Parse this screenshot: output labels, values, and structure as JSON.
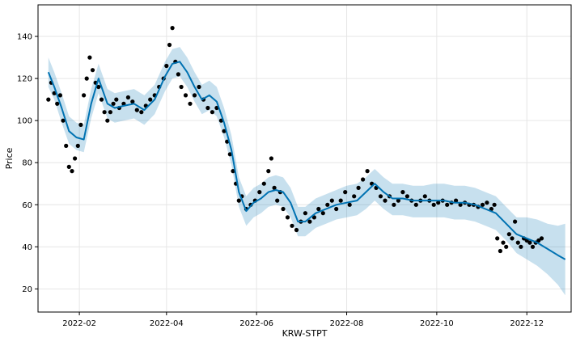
{
  "chart_data": {
    "type": "line",
    "title": "",
    "xlabel": "KRW-STPT",
    "ylabel": "Price",
    "xlim": [
      "2022-01-04",
      "2022-12-31"
    ],
    "ylim": [
      9,
      155
    ],
    "xticks": [
      "2022-02",
      "2022-04",
      "2022-06",
      "2022-08",
      "2022-10",
      "2022-12"
    ],
    "yticks": [
      20,
      40,
      60,
      80,
      100,
      120,
      140
    ],
    "grid": true,
    "colors": {
      "forecast": "#0072B2",
      "interval": "#0072B2",
      "actual": "#000000"
    },
    "forecast": {
      "name": "yhat",
      "x": [
        "2022-01-11",
        "2022-01-15",
        "2022-01-20",
        "2022-01-25",
        "2022-01-30",
        "2022-02-04",
        "2022-02-09",
        "2022-02-14",
        "2022-02-20",
        "2022-02-25",
        "2022-03-03",
        "2022-03-10",
        "2022-03-17",
        "2022-03-24",
        "2022-03-31",
        "2022-04-05",
        "2022-04-10",
        "2022-04-15",
        "2022-04-20",
        "2022-04-25",
        "2022-04-30",
        "2022-05-05",
        "2022-05-10",
        "2022-05-15",
        "2022-05-20",
        "2022-05-25",
        "2022-05-30",
        "2022-06-04",
        "2022-06-09",
        "2022-06-14",
        "2022-06-19",
        "2022-06-24",
        "2022-06-29",
        "2022-07-04",
        "2022-07-11",
        "2022-07-18",
        "2022-07-25",
        "2022-08-01",
        "2022-08-08",
        "2022-08-14",
        "2022-08-20",
        "2022-08-26",
        "2022-09-01",
        "2022-09-08",
        "2022-09-15",
        "2022-09-22",
        "2022-09-29",
        "2022-10-06",
        "2022-10-13",
        "2022-10-20",
        "2022-10-27",
        "2022-11-03",
        "2022-11-10",
        "2022-11-17",
        "2022-11-24",
        "2022-12-01",
        "2022-12-08",
        "2022-12-15",
        "2022-12-22",
        "2022-12-27"
      ],
      "yhat": [
        123,
        116,
        106,
        95,
        92,
        91,
        108,
        120,
        108,
        106,
        107,
        108,
        105,
        110,
        121,
        127,
        128,
        123,
        116,
        110,
        112,
        109,
        99,
        86,
        66,
        57,
        61,
        63,
        66,
        67,
        66,
        61,
        52,
        52,
        56,
        58,
        60,
        61,
        62,
        66,
        70,
        66,
        63,
        63,
        62,
        62,
        62,
        62,
        61,
        61,
        60,
        58,
        56,
        51,
        46,
        44,
        42,
        39,
        36,
        34
      ],
      "lower": [
        116,
        110,
        99,
        89,
        86,
        85,
        101,
        113,
        101,
        99,
        100,
        101,
        98,
        103,
        114,
        120,
        121,
        116,
        109,
        103,
        105,
        102,
        92,
        79,
        59,
        50,
        54,
        56,
        59,
        60,
        59,
        54,
        45,
        45,
        49,
        51,
        53,
        54,
        55,
        58,
        62,
        58,
        55,
        55,
        54,
        54,
        54,
        54,
        53,
        53,
        52,
        50,
        48,
        43,
        37,
        34,
        31,
        27,
        22,
        17
      ],
      "upper": [
        130,
        123,
        113,
        102,
        99,
        98,
        115,
        127,
        115,
        113,
        114,
        115,
        112,
        117,
        128,
        134,
        135,
        130,
        123,
        117,
        119,
        116,
        106,
        93,
        73,
        64,
        68,
        70,
        73,
        74,
        73,
        68,
        59,
        59,
        63,
        65,
        67,
        69,
        70,
        73,
        77,
        73,
        70,
        70,
        69,
        69,
        70,
        70,
        69,
        69,
        68,
        66,
        64,
        59,
        54,
        54,
        53,
        51,
        50,
        51
      ]
    },
    "actual": {
      "name": "y",
      "x": [
        "2022-01-11",
        "2022-01-13",
        "2022-01-15",
        "2022-01-17",
        "2022-01-19",
        "2022-01-21",
        "2022-01-23",
        "2022-01-25",
        "2022-01-27",
        "2022-01-29",
        "2022-01-31",
        "2022-02-02",
        "2022-02-04",
        "2022-02-06",
        "2022-02-08",
        "2022-02-10",
        "2022-02-12",
        "2022-02-14",
        "2022-02-16",
        "2022-02-18",
        "2022-02-20",
        "2022-02-22",
        "2022-02-24",
        "2022-02-26",
        "2022-02-28",
        "2022-03-03",
        "2022-03-06",
        "2022-03-09",
        "2022-03-12",
        "2022-03-15",
        "2022-03-18",
        "2022-03-21",
        "2022-03-24",
        "2022-03-27",
        "2022-03-30",
        "2022-04-01",
        "2022-04-03",
        "2022-04-05",
        "2022-04-07",
        "2022-04-09",
        "2022-04-11",
        "2022-04-14",
        "2022-04-17",
        "2022-04-20",
        "2022-04-23",
        "2022-04-26",
        "2022-04-29",
        "2022-05-02",
        "2022-05-05",
        "2022-05-08",
        "2022-05-10",
        "2022-05-12",
        "2022-05-14",
        "2022-05-16",
        "2022-05-18",
        "2022-05-20",
        "2022-05-22",
        "2022-05-25",
        "2022-05-28",
        "2022-05-31",
        "2022-06-03",
        "2022-06-06",
        "2022-06-09",
        "2022-06-11",
        "2022-06-13",
        "2022-06-15",
        "2022-06-17",
        "2022-06-19",
        "2022-06-22",
        "2022-06-25",
        "2022-06-28",
        "2022-07-01",
        "2022-07-04",
        "2022-07-07",
        "2022-07-10",
        "2022-07-13",
        "2022-07-16",
        "2022-07-19",
        "2022-07-22",
        "2022-07-25",
        "2022-07-28",
        "2022-07-31",
        "2022-08-03",
        "2022-08-06",
        "2022-08-09",
        "2022-08-12",
        "2022-08-15",
        "2022-08-18",
        "2022-08-21",
        "2022-08-24",
        "2022-08-27",
        "2022-08-30",
        "2022-09-02",
        "2022-09-05",
        "2022-09-08",
        "2022-09-11",
        "2022-09-14",
        "2022-09-17",
        "2022-09-20",
        "2022-09-23",
        "2022-09-26",
        "2022-09-29",
        "2022-10-02",
        "2022-10-05",
        "2022-10-08",
        "2022-10-11",
        "2022-10-14",
        "2022-10-17",
        "2022-10-20",
        "2022-10-23",
        "2022-10-26",
        "2022-10-29",
        "2022-11-01",
        "2022-11-04",
        "2022-11-07",
        "2022-11-09",
        "2022-11-11",
        "2022-11-13",
        "2022-11-15",
        "2022-11-17",
        "2022-11-19",
        "2022-11-21",
        "2022-11-23",
        "2022-11-25",
        "2022-11-27",
        "2022-11-29",
        "2022-12-01",
        "2022-12-03",
        "2022-12-05",
        "2022-12-07",
        "2022-12-09",
        "2022-12-11"
      ],
      "y": [
        110,
        118,
        113,
        108,
        112,
        100,
        88,
        78,
        76,
        82,
        88,
        98,
        112,
        120,
        130,
        124,
        118,
        116,
        110,
        104,
        100,
        104,
        108,
        110,
        106,
        108,
        111,
        109,
        105,
        104,
        107,
        110,
        112,
        116,
        120,
        126,
        136,
        144,
        128,
        122,
        116,
        112,
        108,
        112,
        116,
        110,
        106,
        104,
        106,
        100,
        95,
        90,
        84,
        76,
        70,
        62,
        64,
        58,
        60,
        62,
        66,
        70,
        76,
        82,
        68,
        62,
        66,
        58,
        54,
        50,
        48,
        52,
        56,
        52,
        54,
        58,
        56,
        60,
        62,
        58,
        62,
        66,
        60,
        64,
        68,
        72,
        76,
        70,
        68,
        64,
        62,
        64,
        60,
        62,
        66,
        64,
        62,
        60,
        62,
        64,
        62,
        60,
        61,
        62,
        60,
        61,
        62,
        60,
        61,
        60,
        60,
        59,
        60,
        61,
        58,
        60,
        44,
        38,
        42,
        40,
        46,
        44,
        52,
        42,
        40,
        44,
        43,
        42,
        40,
        42,
        43,
        44
      ]
    }
  }
}
